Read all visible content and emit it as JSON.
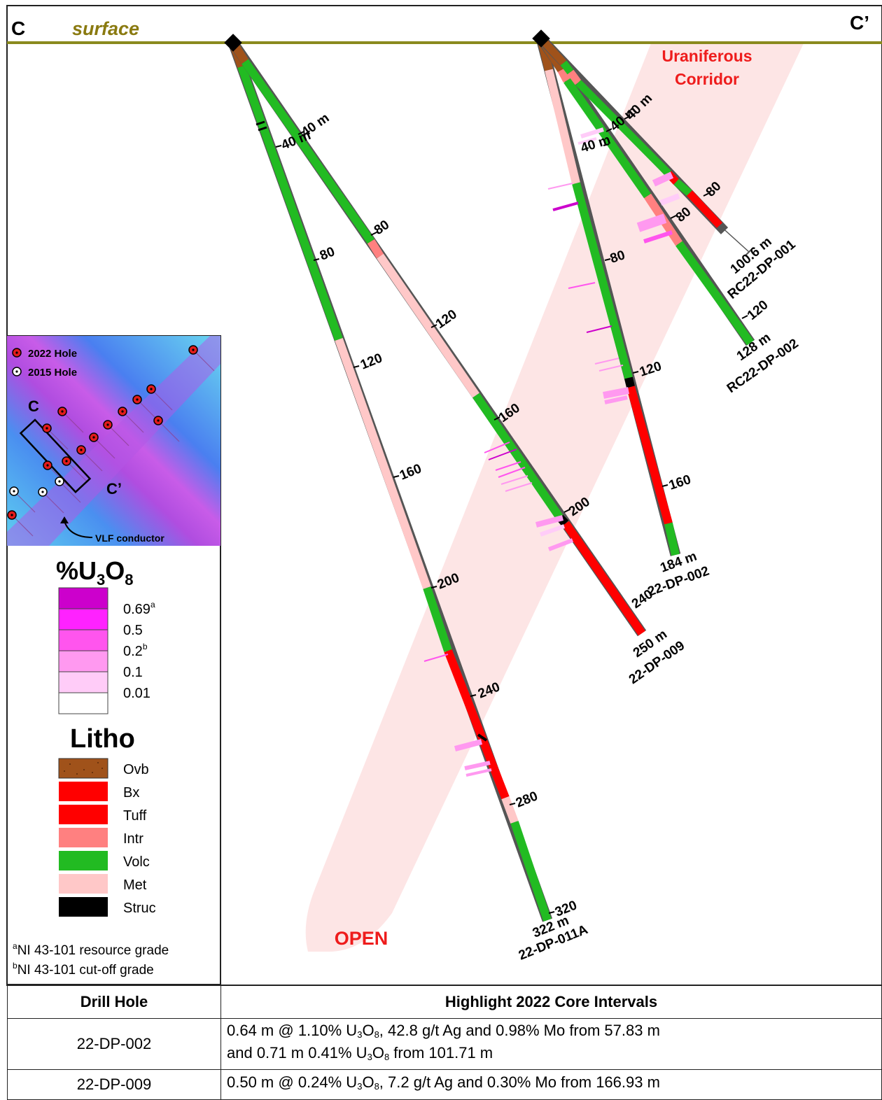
{
  "section": {
    "left_label": "C",
    "right_label": "C’",
    "surface_label": "surface",
    "corridor_label_line1": "Uraniferous",
    "corridor_label_line2": "Corridor",
    "open_label": "OPEN"
  },
  "colors": {
    "surface": "#8a8a1e",
    "ovb": "#a0521a",
    "bx": "#ff0000",
    "tuff": "#ff0000",
    "intr": "#ff8080",
    "volc": "#22bb22",
    "met": "#ffc8c8",
    "struc": "#000000",
    "corridor": "#fde2e2",
    "grade_069": "#cc00cc",
    "grade_05": "#ff22ff",
    "grade_02": "#ff55ee",
    "grade_01": "#ff99f0",
    "grade_001": "#ffccf8"
  },
  "holes": [
    {
      "id": "22-DP-011A",
      "depth_label": "322 m",
      "ticks": [
        "40 m",
        "80",
        "120",
        "160",
        "200",
        "240",
        "280",
        "320"
      ]
    },
    {
      "id": "22-DP-009",
      "depth_label": "250 m",
      "ticks": [
        "40 m",
        "80",
        "120",
        "160",
        "200",
        "240"
      ]
    },
    {
      "id": "22-DP-002",
      "depth_label": "184 m",
      "ticks": [
        "40 m",
        "80",
        "120",
        "160"
      ]
    },
    {
      "id": "RC22-DP-002",
      "depth_label": "128 m",
      "ticks": [
        "40 m",
        "80",
        "120"
      ]
    },
    {
      "id": "RC22-DP-001",
      "depth_label": "100.6 m",
      "ticks": [
        "40 m",
        "80"
      ]
    }
  ],
  "inset_map": {
    "legend_2022": "2022 Hole",
    "legend_2015": "2015 Hole",
    "section_start": "C",
    "section_end": "C’",
    "conductor_label": "VLF conductor"
  },
  "grade_legend": {
    "title_prefix": "%U",
    "title_sub1": "3",
    "title_mid": "O",
    "title_sub2": "8",
    "items": [
      {
        "value": "0.69",
        "note": "a"
      },
      {
        "value": "0.5",
        "note": ""
      },
      {
        "value": "0.2",
        "note": "b"
      },
      {
        "value": "0.1",
        "note": ""
      },
      {
        "value": "0.01",
        "note": ""
      }
    ]
  },
  "litho_legend": {
    "title": "Litho",
    "items": [
      "Ovb",
      "Bx",
      "Tuff",
      "Intr",
      "Volc",
      "Met",
      "Struc"
    ]
  },
  "footnotes": {
    "a_mark": "a",
    "a_text": "NI 43-101 resource grade",
    "b_mark": "b",
    "b_text": "NI 43-101 cut-off grade"
  },
  "table": {
    "col1": "Drill Hole",
    "col2": "Highlight 2022 Core Intervals",
    "rows": [
      {
        "hole": "22-DP-002",
        "line1_a": "0.64 m @ 1.10% U",
        "line1_b": "O",
        "line1_c": ", 42.8 g/t Ag and 0.98% Mo from 57.83 m",
        "line2_a": "and 0.71 m 0.41% U",
        "line2_b": "O",
        "line2_c": " from 101.71 m"
      },
      {
        "hole": "22-DP-009",
        "line1_a": "0.50 m @ 0.24% U",
        "line1_b": "O",
        "line1_c": ", 7.2 g/t Ag and 0.30% Mo from 166.93 m"
      }
    ]
  }
}
